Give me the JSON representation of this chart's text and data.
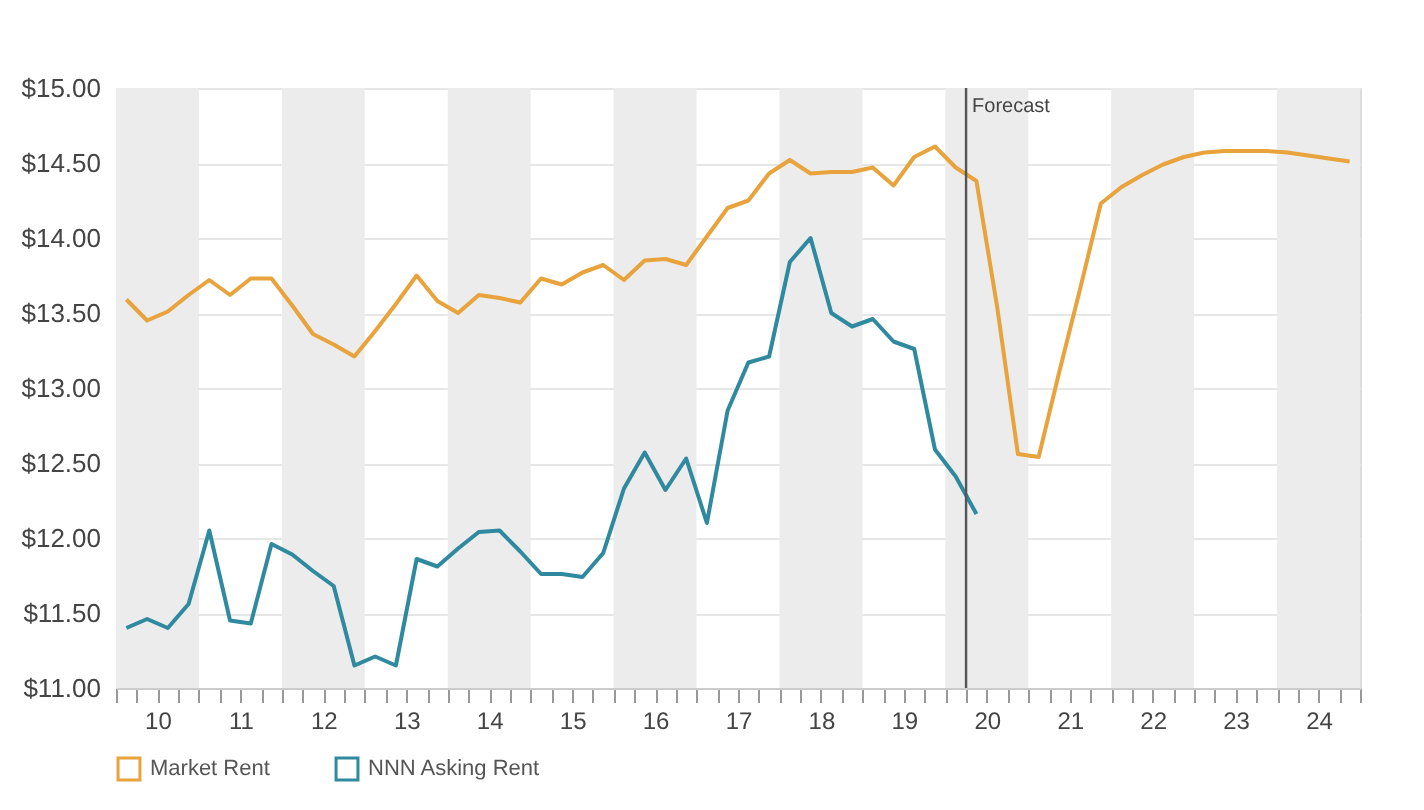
{
  "chart_data": {
    "type": "line",
    "x": [
      9.625,
      9.875,
      10.125,
      10.375,
      10.625,
      10.875,
      11.125,
      11.375,
      11.625,
      11.875,
      12.125,
      12.375,
      12.625,
      12.875,
      13.125,
      13.375,
      13.625,
      13.875,
      14.125,
      14.375,
      14.625,
      14.875,
      15.125,
      15.375,
      15.625,
      15.875,
      16.125,
      16.375,
      16.625,
      16.875,
      17.125,
      17.375,
      17.625,
      17.875,
      18.125,
      18.375,
      18.625,
      18.875,
      19.125,
      19.375,
      19.625,
      19.875,
      20.125,
      20.375,
      20.625,
      20.875,
      21.125,
      21.375,
      21.625,
      21.875,
      22.125,
      22.375,
      22.625,
      22.875,
      23.125,
      23.375,
      23.625,
      23.875,
      24.125,
      24.375
    ],
    "series": [
      {
        "name": "Market Rent",
        "color": "#e8a33d",
        "values": [
          13.59,
          13.45,
          13.51,
          13.62,
          13.72,
          13.62,
          13.73,
          13.73,
          13.55,
          13.36,
          13.29,
          13.21,
          13.38,
          13.56,
          13.75,
          13.58,
          13.5,
          13.62,
          13.6,
          13.57,
          13.73,
          13.69,
          13.77,
          13.82,
          13.72,
          13.85,
          13.86,
          13.82,
          14.01,
          14.2,
          14.25,
          14.43,
          14.52,
          14.43,
          14.44,
          14.44,
          14.47,
          14.35,
          14.54,
          14.61,
          14.47,
          14.38,
          13.54,
          12.56,
          12.54,
          13.11,
          13.66,
          14.23,
          14.34,
          14.42,
          14.49,
          14.54,
          14.57,
          14.58,
          14.58,
          14.58,
          14.57,
          14.55,
          14.53,
          14.51
        ]
      },
      {
        "name": "NNN Asking Rent",
        "color": "#2f8aa0",
        "values": [
          11.4,
          11.46,
          11.4,
          11.56,
          12.05,
          11.45,
          11.43,
          11.96,
          11.89,
          11.78,
          11.68,
          11.15,
          11.21,
          11.15,
          11.86,
          11.81,
          11.93,
          12.04,
          12.05,
          11.91,
          11.76,
          11.76,
          11.74,
          11.9,
          12.33,
          12.57,
          12.32,
          12.53,
          12.1,
          12.85,
          13.17,
          13.21,
          13.84,
          14.0,
          13.5,
          13.41,
          13.46,
          13.31,
          13.26,
          12.59,
          12.41,
          12.16,
          null,
          null,
          null,
          null,
          null,
          null,
          null,
          null,
          null,
          null,
          null,
          null,
          null,
          null,
          null,
          null,
          null,
          null
        ]
      }
    ],
    "xlim": [
      9.5,
      24.5
    ],
    "xticks": [
      {
        "value": 9.5,
        "label": null
      },
      {
        "value": 9.75,
        "label": null
      },
      10,
      {
        "value": 10.25,
        "label": null
      },
      {
        "value": 10.5,
        "label": null
      },
      {
        "value": 10.75,
        "label": null
      },
      11,
      {
        "value": 11.25,
        "label": null
      },
      {
        "value": 11.5,
        "label": null
      },
      {
        "value": 11.75,
        "label": null
      },
      12,
      {
        "value": 12.25,
        "label": null
      },
      {
        "value": 12.5,
        "label": null
      },
      {
        "value": 12.75,
        "label": null
      },
      13,
      {
        "value": 13.25,
        "label": null
      },
      {
        "value": 13.5,
        "label": null
      },
      {
        "value": 13.75,
        "label": null
      },
      14,
      {
        "value": 14.25,
        "label": null
      },
      {
        "value": 14.5,
        "label": null
      },
      {
        "value": 14.75,
        "label": null
      },
      15,
      {
        "value": 15.25,
        "label": null
      },
      {
        "value": 15.5,
        "label": null
      },
      {
        "value": 15.75,
        "label": null
      },
      16,
      {
        "value": 16.25,
        "label": null
      },
      {
        "value": 16.5,
        "label": null
      },
      {
        "value": 16.75,
        "label": null
      },
      17,
      {
        "value": 17.25,
        "label": null
      },
      {
        "value": 17.5,
        "label": null
      },
      {
        "value": 17.75,
        "label": null
      },
      18,
      {
        "value": 18.25,
        "label": null
      },
      {
        "value": 18.5,
        "label": null
      },
      {
        "value": 18.75,
        "label": null
      },
      19,
      {
        "value": 19.25,
        "label": null
      },
      {
        "value": 19.5,
        "label": null
      },
      {
        "value": 19.75,
        "label": null
      },
      20,
      {
        "value": 20.25,
        "label": null
      },
      {
        "value": 20.5,
        "label": null
      },
      {
        "value": 20.75,
        "label": null
      },
      21,
      {
        "value": 21.25,
        "label": null
      },
      {
        "value": 21.5,
        "label": null
      },
      {
        "value": 21.75,
        "label": null
      },
      22,
      {
        "value": 22.25,
        "label": null
      },
      {
        "value": 22.5,
        "label": null
      },
      {
        "value": 22.75,
        "label": null
      },
      23,
      {
        "value": 23.25,
        "label": null
      },
      {
        "value": 23.5,
        "label": null
      },
      {
        "value": 23.75,
        "label": null
      },
      24,
      {
        "value": 24.25,
        "label": null
      },
      {
        "value": 24.5,
        "label": null
      }
    ],
    "ylim": [
      11,
      15
    ],
    "yticks": [
      {
        "value": 11,
        "label": "$11.00"
      },
      {
        "value": 11.5,
        "label": "$11.50"
      },
      {
        "value": 12,
        "label": "$12.00"
      },
      {
        "value": 12.5,
        "label": "$12.50"
      },
      {
        "value": 13,
        "label": "$13.00"
      },
      {
        "value": 13.5,
        "label": "$13.50"
      },
      {
        "value": 14,
        "label": "$14.00"
      },
      {
        "value": 14.5,
        "label": "$14.50"
      },
      {
        "value": 15,
        "label": "$15.00"
      }
    ],
    "bands": [
      {
        "axis": "x",
        "from": 9.5,
        "to": 10.5,
        "color": "#ececec"
      },
      {
        "axis": "x",
        "from": 11.5,
        "to": 12.5,
        "color": "#ececec"
      },
      {
        "axis": "x",
        "from": 13.5,
        "to": 14.5,
        "color": "#ececec"
      },
      {
        "axis": "x",
        "from": 15.5,
        "to": 16.5,
        "color": "#ececec"
      },
      {
        "axis": "x",
        "from": 17.5,
        "to": 18.5,
        "color": "#ececec"
      },
      {
        "axis": "x",
        "from": 19.5,
        "to": 20.5,
        "color": "#ececec"
      },
      {
        "axis": "x",
        "from": 21.5,
        "to": 22.5,
        "color": "#ececec"
      },
      {
        "axis": "x",
        "from": 23.5,
        "to": 24.5,
        "color": "#ececec"
      }
    ],
    "ref_lines": [
      {
        "axis": "x",
        "value": 19.75,
        "label": "Forecast",
        "color": "#555555"
      }
    ],
    "grid": "y",
    "legend": "bottom",
    "marker": "none",
    "line_style": "solid"
  }
}
